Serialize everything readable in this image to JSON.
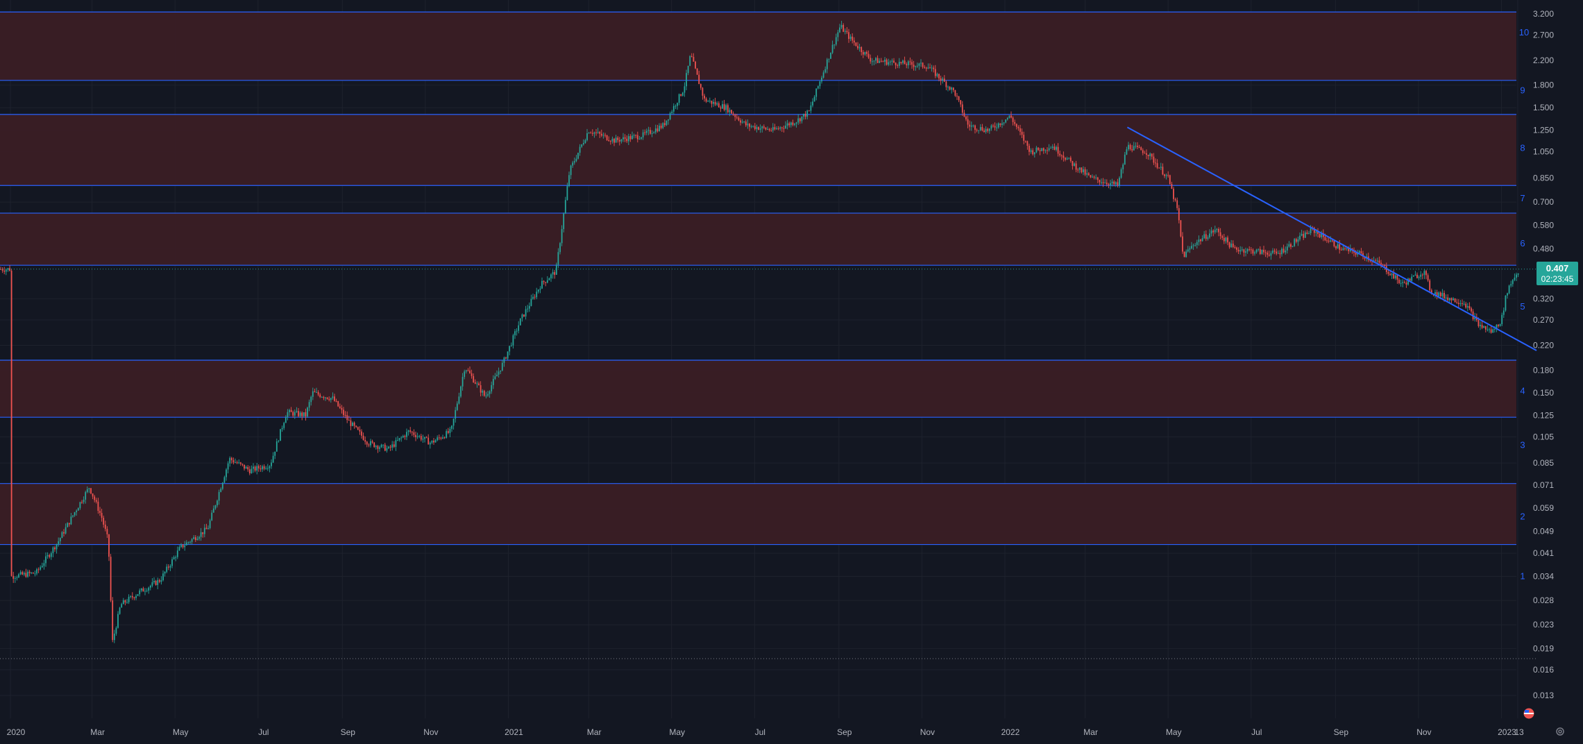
{
  "chart_data": {
    "type": "candlestick",
    "title": "",
    "scale": "log",
    "grid": true,
    "x_ticks": [
      "2020",
      "Mar",
      "May",
      "Jul",
      "Sep",
      "Nov",
      "2021",
      "Mar",
      "May",
      "Jul",
      "Sep",
      "Nov",
      "2022",
      "Mar",
      "May",
      "Jul",
      "Sep",
      "Nov",
      "2023",
      "13"
    ],
    "y_ticks": [
      "3.200",
      "2.700",
      "2.200",
      "1.800",
      "1.500",
      "1.250",
      "1.050",
      "0.850",
      "0.700",
      "0.580",
      "0.480",
      "0.320",
      "0.270",
      "0.220",
      "0.180",
      "0.150",
      "0.125",
      "0.105",
      "0.085",
      "0.071",
      "0.059",
      "0.049",
      "0.041",
      "0.034",
      "0.028",
      "0.023",
      "0.019",
      "0.016",
      "0.013"
    ],
    "ylim": [
      0.011,
      3.3
    ],
    "xlim": [
      "2020-01-01",
      "2023-01-17"
    ],
    "price_path": [
      {
        "date": "2020-01-01",
        "value": 0.034
      },
      {
        "date": "2020-01-20",
        "value": 0.035
      },
      {
        "date": "2020-02-05",
        "value": 0.045
      },
      {
        "date": "2020-02-18",
        "value": 0.058
      },
      {
        "date": "2020-02-28",
        "value": 0.07
      },
      {
        "date": "2020-03-08",
        "value": 0.055
      },
      {
        "date": "2020-03-13",
        "value": 0.045
      },
      {
        "date": "2020-03-16",
        "value": 0.02
      },
      {
        "date": "2020-03-22",
        "value": 0.027
      },
      {
        "date": "2020-04-05",
        "value": 0.03
      },
      {
        "date": "2020-04-20",
        "value": 0.033
      },
      {
        "date": "2020-05-05",
        "value": 0.043
      },
      {
        "date": "2020-05-25",
        "value": 0.05
      },
      {
        "date": "2020-06-10",
        "value": 0.088
      },
      {
        "date": "2020-06-25",
        "value": 0.08
      },
      {
        "date": "2020-07-10",
        "value": 0.084
      },
      {
        "date": "2020-07-22",
        "value": 0.128
      },
      {
        "date": "2020-08-05",
        "value": 0.125
      },
      {
        "date": "2020-08-10",
        "value": 0.15
      },
      {
        "date": "2020-08-25",
        "value": 0.143
      },
      {
        "date": "2020-09-05",
        "value": 0.12
      },
      {
        "date": "2020-09-20",
        "value": 0.1
      },
      {
        "date": "2020-10-05",
        "value": 0.095
      },
      {
        "date": "2020-10-20",
        "value": 0.11
      },
      {
        "date": "2020-11-05",
        "value": 0.1
      },
      {
        "date": "2020-11-20",
        "value": 0.11
      },
      {
        "date": "2020-11-30",
        "value": 0.185
      },
      {
        "date": "2020-12-15",
        "value": 0.145
      },
      {
        "date": "2020-12-28",
        "value": 0.19
      },
      {
        "date": "2021-01-10",
        "value": 0.27
      },
      {
        "date": "2021-01-25",
        "value": 0.36
      },
      {
        "date": "2021-02-05",
        "value": 0.4
      },
      {
        "date": "2021-02-15",
        "value": 0.9
      },
      {
        "date": "2021-03-01",
        "value": 1.25
      },
      {
        "date": "2021-03-20",
        "value": 1.15
      },
      {
        "date": "2021-04-10",
        "value": 1.2
      },
      {
        "date": "2021-04-25",
        "value": 1.3
      },
      {
        "date": "2021-05-10",
        "value": 1.75
      },
      {
        "date": "2021-05-15",
        "value": 2.3
      },
      {
        "date": "2021-05-25",
        "value": 1.6
      },
      {
        "date": "2021-06-10",
        "value": 1.5
      },
      {
        "date": "2021-06-25",
        "value": 1.3
      },
      {
        "date": "2021-07-15",
        "value": 1.25
      },
      {
        "date": "2021-08-01",
        "value": 1.35
      },
      {
        "date": "2021-08-10",
        "value": 1.45
      },
      {
        "date": "2021-08-25",
        "value": 2.3
      },
      {
        "date": "2021-09-02",
        "value": 2.9
      },
      {
        "date": "2021-09-10",
        "value": 2.6
      },
      {
        "date": "2021-09-25",
        "value": 2.2
      },
      {
        "date": "2021-10-15",
        "value": 2.15
      },
      {
        "date": "2021-11-05",
        "value": 2.1
      },
      {
        "date": "2021-11-25",
        "value": 1.7
      },
      {
        "date": "2021-12-05",
        "value": 1.3
      },
      {
        "date": "2021-12-20",
        "value": 1.25
      },
      {
        "date": "2022-01-05",
        "value": 1.4
      },
      {
        "date": "2022-01-20",
        "value": 1.05
      },
      {
        "date": "2022-02-05",
        "value": 1.1
      },
      {
        "date": "2022-02-20",
        "value": 0.95
      },
      {
        "date": "2022-03-05",
        "value": 0.85
      },
      {
        "date": "2022-03-25",
        "value": 0.8
      },
      {
        "date": "2022-04-01",
        "value": 1.1
      },
      {
        "date": "2022-04-15",
        "value": 1.05
      },
      {
        "date": "2022-05-01",
        "value": 0.85
      },
      {
        "date": "2022-05-08",
        "value": 0.65
      },
      {
        "date": "2022-05-12",
        "value": 0.45
      },
      {
        "date": "2022-05-20",
        "value": 0.5
      },
      {
        "date": "2022-06-05",
        "value": 0.56
      },
      {
        "date": "2022-06-18",
        "value": 0.48
      },
      {
        "date": "2022-07-05",
        "value": 0.47
      },
      {
        "date": "2022-07-20",
        "value": 0.46
      },
      {
        "date": "2022-08-05",
        "value": 0.52
      },
      {
        "date": "2022-08-15",
        "value": 0.56
      },
      {
        "date": "2022-09-05",
        "value": 0.48
      },
      {
        "date": "2022-09-20",
        "value": 0.46
      },
      {
        "date": "2022-10-05",
        "value": 0.42
      },
      {
        "date": "2022-10-20",
        "value": 0.36
      },
      {
        "date": "2022-11-05",
        "value": 0.4
      },
      {
        "date": "2022-11-10",
        "value": 0.34
      },
      {
        "date": "2022-11-25",
        "value": 0.32
      },
      {
        "date": "2022-12-05",
        "value": 0.31
      },
      {
        "date": "2022-12-15",
        "value": 0.26
      },
      {
        "date": "2022-12-25",
        "value": 0.245
      },
      {
        "date": "2023-01-01",
        "value": 0.27
      },
      {
        "date": "2023-01-05",
        "value": 0.34
      },
      {
        "date": "2023-01-10",
        "value": 0.38
      },
      {
        "date": "2023-01-15",
        "value": 0.407
      }
    ],
    "zones": [
      {
        "label": "1",
        "lo": 0.0,
        "hi": 0.0,
        "band": false
      },
      {
        "label": "2",
        "lo": 0.044,
        "hi": 0.072,
        "band": true
      },
      {
        "label": "3",
        "lo": 0.0,
        "hi": 0.0,
        "band": false
      },
      {
        "label": "4",
        "lo": 0.123,
        "hi": 0.195,
        "band": true
      },
      {
        "label": "5",
        "lo": 0.0,
        "hi": 0.0,
        "band": false
      },
      {
        "label": "6",
        "lo": 0.42,
        "hi": 0.64,
        "band": true
      },
      {
        "label": "7",
        "lo": 0.0,
        "hi": 0.0,
        "band": false
      },
      {
        "label": "8",
        "lo": 0.8,
        "hi": 1.42,
        "band": true
      },
      {
        "label": "9",
        "lo": 0.0,
        "hi": 0.0,
        "band": false
      },
      {
        "label": "10",
        "lo": 1.87,
        "hi": 3.25,
        "band": true
      }
    ],
    "zone_label_values": [
      0.034,
      0.055,
      0.098,
      0.152,
      0.3,
      0.5,
      0.72,
      1.08,
      1.72,
      2.75
    ],
    "trendline": [
      {
        "date": "2022-04-01",
        "value": 1.28
      },
      {
        "date": "2023-01-17",
        "value": 0.211
      }
    ],
    "dotted_levels": [
      0.407,
      0.0175
    ],
    "last_price": "0.407",
    "countdown": "02:23:45",
    "colors": {
      "background": "#131722",
      "zone_fill": "#3a1d25",
      "zone_border": "#2962ff",
      "up": "#26a69a",
      "down": "#ef5350",
      "trendline": "#2962ff",
      "axis_text": "#b2b5be",
      "zone_label": "#2962ff",
      "badge": "#26a69a"
    }
  }
}
